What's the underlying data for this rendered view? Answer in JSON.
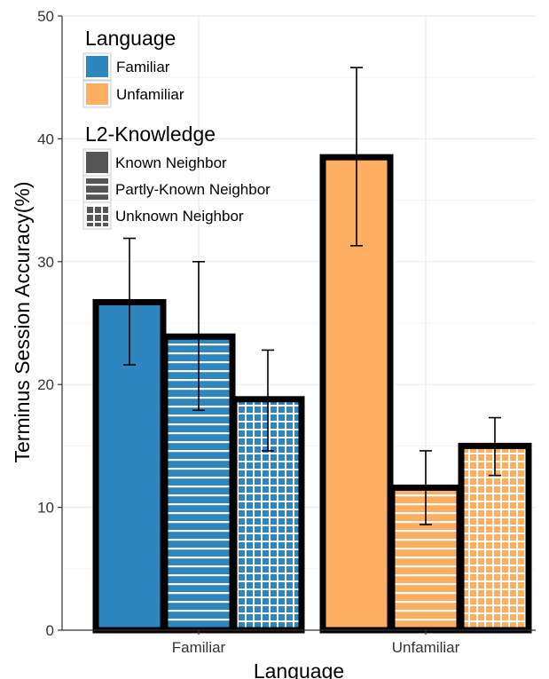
{
  "chart_data": {
    "type": "bar",
    "title": "",
    "xlabel": "Language",
    "ylabel": "Terminus Session Accuracy(%)",
    "ylim": [
      0,
      50
    ],
    "yticks": [
      0,
      10,
      20,
      30,
      40,
      50
    ],
    "grid": true,
    "legend_placement": "top-left",
    "categories": [
      "Familiar",
      "Unfamiliar"
    ],
    "series": [
      {
        "name": "Known Neighbor",
        "pattern": "solid",
        "values": [
          26.7,
          38.5
        ],
        "error_low": [
          21.6,
          31.3
        ],
        "error_high": [
          31.9,
          45.8
        ]
      },
      {
        "name": "Partly-Known Neighbor",
        "pattern": "horizontal-lines",
        "values": [
          23.9,
          11.6
        ],
        "error_low": [
          17.9,
          8.6
        ],
        "error_high": [
          30.0,
          14.6
        ]
      },
      {
        "name": "Unknown Neighbor",
        "pattern": "grid",
        "values": [
          18.8,
          15.0
        ],
        "error_low": [
          14.6,
          12.6
        ],
        "error_high": [
          22.8,
          17.3
        ]
      }
    ],
    "legend": {
      "fill_title": "Language",
      "fill_entries": [
        {
          "label": "Familiar",
          "color": "#2e86c1"
        },
        {
          "label": "Unfamiliar",
          "color": "#fdae61"
        }
      ],
      "pattern_title": "L2-Knowledge",
      "pattern_entries": [
        {
          "label": "Known Neighbor",
          "pattern": "solid"
        },
        {
          "label": "Partly-Known Neighbor",
          "pattern": "horizontal-lines"
        },
        {
          "label": "Unknown Neighbor",
          "pattern": "grid"
        }
      ]
    },
    "colors": {
      "Familiar": "#2e86c1",
      "Unfamiliar": "#fdae61",
      "outline": "#000000",
      "grid": "#ececec"
    }
  }
}
